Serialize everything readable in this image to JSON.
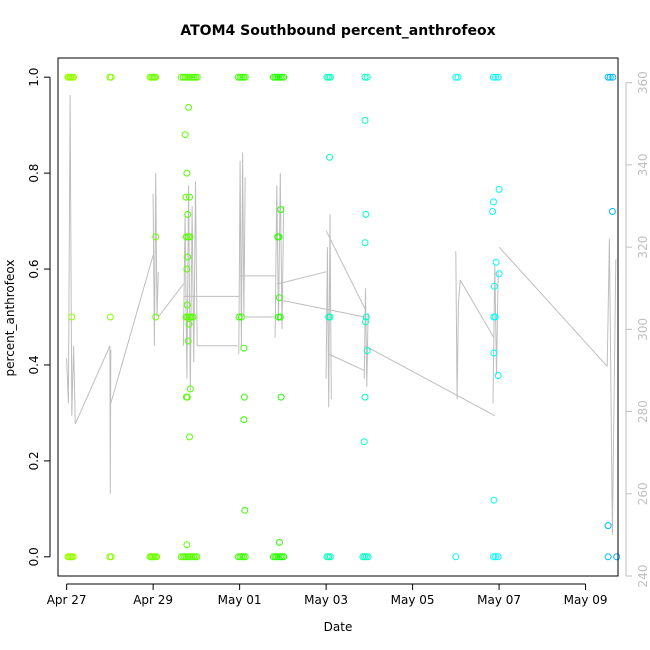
{
  "chart_data": {
    "type": "scatter",
    "title": "ATOM4 Southbound percent_anthrofeox",
    "xlabel": "Date",
    "ylabel": "percent_anthrofeox",
    "x_unit": "days since Apr 27 00:00",
    "xlim": [
      -0.2,
      12.75
    ],
    "ylim": [
      -0.04,
      1.04
    ],
    "y2lim": [
      240,
      366
    ],
    "x_ticks": [
      {
        "value": 0,
        "label": "Apr 27"
      },
      {
        "value": 2,
        "label": "Apr 29"
      },
      {
        "value": 4,
        "label": "May 01"
      },
      {
        "value": 6,
        "label": "May 03"
      },
      {
        "value": 8,
        "label": "May 05"
      },
      {
        "value": 10,
        "label": "May 07"
      },
      {
        "value": 12,
        "label": "May 09"
      }
    ],
    "y_ticks": [
      {
        "value": 0.0,
        "label": "0.0"
      },
      {
        "value": 0.2,
        "label": "0.2"
      },
      {
        "value": 0.4,
        "label": "0.4"
      },
      {
        "value": 0.6,
        "label": "0.6"
      },
      {
        "value": 0.8,
        "label": "0.8"
      },
      {
        "value": 1.0,
        "label": "1.0"
      }
    ],
    "y2_ticks": [
      {
        "value": 240,
        "label": "240"
      },
      {
        "value": 260,
        "label": "260"
      },
      {
        "value": 280,
        "label": "280"
      },
      {
        "value": 300,
        "label": "300"
      },
      {
        "value": 320,
        "label": "320"
      },
      {
        "value": 340,
        "label": "340"
      },
      {
        "value": 360,
        "label": "360"
      }
    ],
    "secondary_series_color": "#bebebe",
    "points": [
      {
        "x": 0.03,
        "y": 1,
        "c": "#9aff00"
      },
      {
        "x": 0.05,
        "y": 1,
        "c": "#9aff00"
      },
      {
        "x": 0.08,
        "y": 1,
        "c": "#99ff00"
      },
      {
        "x": 0.1,
        "y": 1,
        "c": "#99ff00"
      },
      {
        "x": 0.13,
        "y": 1,
        "c": "#98ff00"
      },
      {
        "x": 0.16,
        "y": 1,
        "c": "#98ff00"
      },
      {
        "x": 0.03,
        "y": 0,
        "c": "#9aff00"
      },
      {
        "x": 0.06,
        "y": 0,
        "c": "#99ff00"
      },
      {
        "x": 0.09,
        "y": 0,
        "c": "#99ff00"
      },
      {
        "x": 0.12,
        "y": 0,
        "c": "#98ff00"
      },
      {
        "x": 0.15,
        "y": 0,
        "c": "#98ff00"
      },
      {
        "x": 0.12,
        "y": 0.5,
        "c": "#98ff00"
      },
      {
        "x": 1.0,
        "y": 1,
        "c": "#86ff00"
      },
      {
        "x": 1.03,
        "y": 1,
        "c": "#86ff00"
      },
      {
        "x": 1.0,
        "y": 0,
        "c": "#86ff00"
      },
      {
        "x": 1.03,
        "y": 0,
        "c": "#86ff00"
      },
      {
        "x": 1.01,
        "y": 0.5,
        "c": "#86ff00"
      },
      {
        "x": 1.93,
        "y": 1,
        "c": "#72ff00"
      },
      {
        "x": 1.97,
        "y": 1,
        "c": "#72ff00"
      },
      {
        "x": 2.0,
        "y": 1,
        "c": "#71ff00"
      },
      {
        "x": 2.03,
        "y": 1,
        "c": "#71ff00"
      },
      {
        "x": 2.06,
        "y": 1,
        "c": "#70ff00"
      },
      {
        "x": 1.93,
        "y": 0,
        "c": "#72ff00"
      },
      {
        "x": 1.96,
        "y": 0,
        "c": "#72ff00"
      },
      {
        "x": 1.99,
        "y": 0,
        "c": "#71ff00"
      },
      {
        "x": 2.02,
        "y": 0,
        "c": "#71ff00"
      },
      {
        "x": 2.05,
        "y": 0,
        "c": "#70ff00"
      },
      {
        "x": 2.08,
        "y": 0,
        "c": "#70ff00"
      },
      {
        "x": 2.06,
        "y": 0.667,
        "c": "#70ff00"
      },
      {
        "x": 2.06,
        "y": 0.5,
        "c": "#70ff00"
      },
      {
        "x": 2.65,
        "y": 1,
        "c": "#5bff00"
      },
      {
        "x": 2.7,
        "y": 1,
        "c": "#5aff00"
      },
      {
        "x": 2.74,
        "y": 1,
        "c": "#59ff00"
      },
      {
        "x": 2.78,
        "y": 1,
        "c": "#58ff00"
      },
      {
        "x": 2.82,
        "y": 1,
        "c": "#57ff00"
      },
      {
        "x": 2.86,
        "y": 1,
        "c": "#56ff00"
      },
      {
        "x": 2.9,
        "y": 1,
        "c": "#55ff00"
      },
      {
        "x": 2.94,
        "y": 1,
        "c": "#54ff00"
      },
      {
        "x": 2.98,
        "y": 1,
        "c": "#53ff00"
      },
      {
        "x": 3.02,
        "y": 1,
        "c": "#52ff00"
      },
      {
        "x": 2.65,
        "y": 0,
        "c": "#5bff00"
      },
      {
        "x": 2.69,
        "y": 0,
        "c": "#5aff00"
      },
      {
        "x": 2.73,
        "y": 0,
        "c": "#59ff00"
      },
      {
        "x": 2.77,
        "y": 0,
        "c": "#58ff00"
      },
      {
        "x": 2.81,
        "y": 0,
        "c": "#57ff00"
      },
      {
        "x": 2.85,
        "y": 0,
        "c": "#56ff00"
      },
      {
        "x": 2.89,
        "y": 0,
        "c": "#55ff00"
      },
      {
        "x": 2.93,
        "y": 0,
        "c": "#54ff00"
      },
      {
        "x": 2.97,
        "y": 0,
        "c": "#53ff00"
      },
      {
        "x": 3.01,
        "y": 0,
        "c": "#52ff00"
      },
      {
        "x": 2.74,
        "y": 0.88,
        "c": "#59ff00"
      },
      {
        "x": 2.82,
        "y": 0.937,
        "c": "#57ff00"
      },
      {
        "x": 2.78,
        "y": 0.8,
        "c": "#58ff00"
      },
      {
        "x": 2.76,
        "y": 0.75,
        "c": "#58ff00"
      },
      {
        "x": 2.84,
        "y": 0.75,
        "c": "#56ff00"
      },
      {
        "x": 2.8,
        "y": 0.714,
        "c": "#57ff00"
      },
      {
        "x": 2.77,
        "y": 0.667,
        "c": "#58ff00"
      },
      {
        "x": 2.81,
        "y": 0.667,
        "c": "#57ff00"
      },
      {
        "x": 2.85,
        "y": 0.667,
        "c": "#56ff00"
      },
      {
        "x": 2.8,
        "y": 0.625,
        "c": "#57ff00"
      },
      {
        "x": 2.78,
        "y": 0.6,
        "c": "#58ff00"
      },
      {
        "x": 2.79,
        "y": 0.525,
        "c": "#57ff00"
      },
      {
        "x": 2.76,
        "y": 0.5,
        "c": "#58ff00"
      },
      {
        "x": 2.8,
        "y": 0.5,
        "c": "#57ff00"
      },
      {
        "x": 2.84,
        "y": 0.5,
        "c": "#56ff00"
      },
      {
        "x": 2.88,
        "y": 0.5,
        "c": "#55ff00"
      },
      {
        "x": 2.92,
        "y": 0.5,
        "c": "#54ff00"
      },
      {
        "x": 2.83,
        "y": 0.485,
        "c": "#56ff00"
      },
      {
        "x": 2.81,
        "y": 0.45,
        "c": "#57ff00"
      },
      {
        "x": 2.77,
        "y": 0.333,
        "c": "#58ff00"
      },
      {
        "x": 2.79,
        "y": 0.333,
        "c": "#57ff00"
      },
      {
        "x": 2.86,
        "y": 0.35,
        "c": "#56ff00"
      },
      {
        "x": 2.84,
        "y": 0.25,
        "c": "#56ff00"
      },
      {
        "x": 2.78,
        "y": 0.025,
        "c": "#58ff00"
      },
      {
        "x": 3.97,
        "y": 1,
        "c": "#3dff00"
      },
      {
        "x": 4.01,
        "y": 1,
        "c": "#3cff00"
      },
      {
        "x": 4.05,
        "y": 1,
        "c": "#3bff00"
      },
      {
        "x": 4.09,
        "y": 1,
        "c": "#3aff00"
      },
      {
        "x": 4.13,
        "y": 1,
        "c": "#39ff00"
      },
      {
        "x": 3.97,
        "y": 0,
        "c": "#3dff00"
      },
      {
        "x": 4.01,
        "y": 0,
        "c": "#3cff00"
      },
      {
        "x": 4.05,
        "y": 0,
        "c": "#3bff00"
      },
      {
        "x": 4.09,
        "y": 0,
        "c": "#3aff00"
      },
      {
        "x": 4.13,
        "y": 0,
        "c": "#39ff00"
      },
      {
        "x": 3.99,
        "y": 0.5,
        "c": "#3dff00"
      },
      {
        "x": 4.04,
        "y": 0.5,
        "c": "#3bff00"
      },
      {
        "x": 4.1,
        "y": 0.435,
        "c": "#3aff00"
      },
      {
        "x": 4.11,
        "y": 0.333,
        "c": "#3aff00"
      },
      {
        "x": 4.1,
        "y": 0.286,
        "c": "#3aff00"
      },
      {
        "x": 4.12,
        "y": 0.097,
        "c": "#39ff00"
      },
      {
        "x": 4.78,
        "y": 1,
        "c": "#2aff00"
      },
      {
        "x": 4.82,
        "y": 1,
        "c": "#29ff00"
      },
      {
        "x": 4.86,
        "y": 1,
        "c": "#28ff00"
      },
      {
        "x": 4.9,
        "y": 1,
        "c": "#27ff00"
      },
      {
        "x": 4.94,
        "y": 1,
        "c": "#26ff00"
      },
      {
        "x": 4.98,
        "y": 1,
        "c": "#25ff00"
      },
      {
        "x": 5.02,
        "y": 1,
        "c": "#24ff00"
      },
      {
        "x": 4.78,
        "y": 0,
        "c": "#2aff00"
      },
      {
        "x": 4.82,
        "y": 0,
        "c": "#29ff00"
      },
      {
        "x": 4.86,
        "y": 0,
        "c": "#28ff00"
      },
      {
        "x": 4.9,
        "y": 0,
        "c": "#27ff00"
      },
      {
        "x": 4.94,
        "y": 0,
        "c": "#26ff00"
      },
      {
        "x": 4.98,
        "y": 0,
        "c": "#25ff00"
      },
      {
        "x": 5.02,
        "y": 0,
        "c": "#24ff00"
      },
      {
        "x": 4.95,
        "y": 0.724,
        "c": "#26ff00"
      },
      {
        "x": 4.91,
        "y": 0.667,
        "c": "#27ff00"
      },
      {
        "x": 4.88,
        "y": 0.667,
        "c": "#28ff00"
      },
      {
        "x": 4.92,
        "y": 0.54,
        "c": "#27ff00"
      },
      {
        "x": 4.9,
        "y": 0.5,
        "c": "#27ff00"
      },
      {
        "x": 4.94,
        "y": 0.5,
        "c": "#26ff00"
      },
      {
        "x": 4.96,
        "y": 0.333,
        "c": "#25ff00"
      },
      {
        "x": 4.92,
        "y": 0.03,
        "c": "#27ff00"
      },
      {
        "x": 6.02,
        "y": 1,
        "c": "#00ffb8"
      },
      {
        "x": 6.06,
        "y": 1,
        "c": "#00ffbc"
      },
      {
        "x": 6.1,
        "y": 1,
        "c": "#00ffc0"
      },
      {
        "x": 6.02,
        "y": 0,
        "c": "#00ffb8"
      },
      {
        "x": 6.06,
        "y": 0,
        "c": "#00ffbc"
      },
      {
        "x": 6.1,
        "y": 0,
        "c": "#00ffc0"
      },
      {
        "x": 6.08,
        "y": 0.833,
        "c": "#00ffbe"
      },
      {
        "x": 6.06,
        "y": 0.5,
        "c": "#00ffbc"
      },
      {
        "x": 6.09,
        "y": 0.5,
        "c": "#00ffbf"
      },
      {
        "x": 6.9,
        "y": 1,
        "c": "#00ffc6"
      },
      {
        "x": 6.95,
        "y": 1,
        "c": "#00ffc8"
      },
      {
        "x": 6.85,
        "y": 0,
        "c": "#00ffc4"
      },
      {
        "x": 6.89,
        "y": 0,
        "c": "#00ffc6"
      },
      {
        "x": 6.93,
        "y": 0,
        "c": "#00ffc8"
      },
      {
        "x": 6.97,
        "y": 0,
        "c": "#00ffca"
      },
      {
        "x": 6.9,
        "y": 0.91,
        "c": "#00ffc6"
      },
      {
        "x": 6.92,
        "y": 0.714,
        "c": "#00ffc7"
      },
      {
        "x": 6.9,
        "y": 0.655,
        "c": "#00ffc6"
      },
      {
        "x": 6.93,
        "y": 0.5,
        "c": "#00ffc8"
      },
      {
        "x": 6.91,
        "y": 0.49,
        "c": "#00ffc7"
      },
      {
        "x": 6.95,
        "y": 0.43,
        "c": "#00ffc9"
      },
      {
        "x": 6.9,
        "y": 0.333,
        "c": "#00ffc6"
      },
      {
        "x": 6.88,
        "y": 0.24,
        "c": "#00ffc5"
      },
      {
        "x": 9.0,
        "y": 1,
        "c": "#00fff2"
      },
      {
        "x": 9.05,
        "y": 1,
        "c": "#00fff4"
      },
      {
        "x": 9.0,
        "y": 0,
        "c": "#00fff2"
      },
      {
        "x": 9.87,
        "y": 1,
        "c": "#00ffff"
      },
      {
        "x": 9.92,
        "y": 1,
        "c": "#00fcff"
      },
      {
        "x": 9.98,
        "y": 1,
        "c": "#00f8ff"
      },
      {
        "x": 9.87,
        "y": 0,
        "c": "#00ffff"
      },
      {
        "x": 9.92,
        "y": 0,
        "c": "#00fcff"
      },
      {
        "x": 9.98,
        "y": 0,
        "c": "#00f8ff"
      },
      {
        "x": 10.0,
        "y": 0.766,
        "c": "#00f8ff"
      },
      {
        "x": 9.87,
        "y": 0.74,
        "c": "#00ffff"
      },
      {
        "x": 9.85,
        "y": 0.72,
        "c": "#00ffff"
      },
      {
        "x": 9.93,
        "y": 0.614,
        "c": "#00fcff"
      },
      {
        "x": 10.0,
        "y": 0.59,
        "c": "#00f8ff"
      },
      {
        "x": 9.89,
        "y": 0.564,
        "c": "#00feff"
      },
      {
        "x": 9.91,
        "y": 0.5,
        "c": "#00fdff"
      },
      {
        "x": 9.88,
        "y": 0.5,
        "c": "#00ffff"
      },
      {
        "x": 9.88,
        "y": 0.425,
        "c": "#00ffff"
      },
      {
        "x": 9.98,
        "y": 0.378,
        "c": "#00f8ff"
      },
      {
        "x": 9.88,
        "y": 0.118,
        "c": "#00ffff"
      },
      {
        "x": 12.52,
        "y": 1,
        "c": "#00b9ff"
      },
      {
        "x": 12.57,
        "y": 1,
        "c": "#00b7ff"
      },
      {
        "x": 12.63,
        "y": 1,
        "c": "#00b5ff"
      },
      {
        "x": 12.52,
        "y": 0,
        "c": "#00b9ff"
      },
      {
        "x": 12.72,
        "y": 0,
        "c": "#00b2ff"
      },
      {
        "x": 12.62,
        "y": 0.72,
        "c": "#00b5ff"
      },
      {
        "x": 12.52,
        "y": 0.065,
        "c": "#00b9ff"
      }
    ],
    "secondary_series": [
      {
        "name": "spike-apr27",
        "x": [
          0.0,
          0.04,
          0.08,
          0.12,
          0.16,
          0.2
        ],
        "y": [
          293,
          282,
          357,
          279,
          296,
          277
        ]
      },
      {
        "name": "link-apr27-28",
        "x": [
          0.2,
          1.0
        ],
        "y": [
          277,
          296
        ]
      },
      {
        "name": "spike-apr28",
        "x": [
          1.0,
          1.01,
          1.02
        ],
        "y": [
          296,
          260,
          295
        ]
      },
      {
        "name": "link-apr28-29",
        "x": [
          1.02,
          2.0
        ],
        "y": [
          282,
          318
        ]
      },
      {
        "name": "spike-apr29",
        "x": [
          2.0,
          2.03,
          2.06,
          2.09,
          2.12
        ],
        "y": [
          333,
          296,
          338,
          303,
          314
        ]
      },
      {
        "name": "link-apr29-30",
        "x": [
          2.12,
          2.7
        ],
        "y": [
          303,
          311
        ]
      },
      {
        "name": "burst-apr30",
        "x": [
          2.7,
          2.74,
          2.78,
          2.82,
          2.86,
          2.9,
          2.94,
          2.98,
          3.02
        ],
        "y": [
          296,
          328,
          288,
          335,
          285,
          330,
          292,
          336,
          296
        ]
      },
      {
        "name": "link-apr30-may01",
        "x": [
          3.02,
          3.95
        ],
        "y": [
          296,
          296
        ]
      },
      {
        "name": "link-apr30-may01b",
        "x": [
          2.7,
          4.0
        ],
        "y": [
          308,
          308
        ]
      },
      {
        "name": "spike-may01",
        "x": [
          3.98,
          4.01,
          4.04,
          4.07,
          4.1,
          4.13
        ],
        "y": [
          294,
          341,
          296,
          343,
          303,
          337
        ]
      },
      {
        "name": "link-may01-02",
        "x": [
          4.13,
          4.85
        ],
        "y": [
          303,
          303
        ]
      },
      {
        "name": "link-may01-02b",
        "x": [
          4.0,
          4.85
        ],
        "y": [
          313,
          313
        ]
      },
      {
        "name": "burst-may02",
        "x": [
          4.82,
          4.86,
          4.9,
          4.94,
          4.98,
          5.02
        ],
        "y": [
          298,
          335,
          302,
          338,
          300,
          330
        ]
      },
      {
        "name": "link-may02-03",
        "x": [
          4.86,
          6.0
        ],
        "y": [
          311,
          314
        ]
      },
      {
        "name": "link-may02-03b",
        "x": [
          5.0,
          6.9
        ],
        "y": [
          307,
          303
        ]
      },
      {
        "name": "spike-may03",
        "x": [
          6.0,
          6.03,
          6.06,
          6.09,
          6.12
        ],
        "y": [
          288,
          320,
          281,
          328,
          283
        ]
      },
      {
        "name": "link-may03-04",
        "x": [
          6.06,
          6.88
        ],
        "y": [
          294,
          290
        ]
      },
      {
        "name": "link-may03-04b",
        "x": [
          6.0,
          6.9
        ],
        "y": [
          324,
          305
        ]
      },
      {
        "name": "burst-may04",
        "x": [
          6.88,
          6.91,
          6.94,
          6.97
        ],
        "y": [
          288,
          310,
          286,
          304
        ]
      },
      {
        "name": "link-may04-06",
        "x": [
          6.9,
          9.9
        ],
        "y": [
          296,
          279
        ]
      },
      {
        "name": "spike-may06",
        "x": [
          9.0,
          9.03,
          9.06,
          9.1
        ],
        "y": [
          319,
          283,
          306,
          312
        ]
      },
      {
        "name": "link-may06-07",
        "x": [
          9.1,
          9.88
        ],
        "y": [
          312,
          298
        ]
      },
      {
        "name": "burst-may07",
        "x": [
          9.86,
          9.9,
          9.94,
          9.98
        ],
        "y": [
          282,
          316,
          289,
          314
        ]
      },
      {
        "name": "link-may07-09",
        "x": [
          10.0,
          12.5
        ],
        "y": [
          320,
          291
        ]
      },
      {
        "name": "spike-may09",
        "x": [
          12.5,
          12.55,
          12.62,
          12.7
        ],
        "y": [
          291,
          322,
          250,
          317
        ]
      }
    ]
  }
}
